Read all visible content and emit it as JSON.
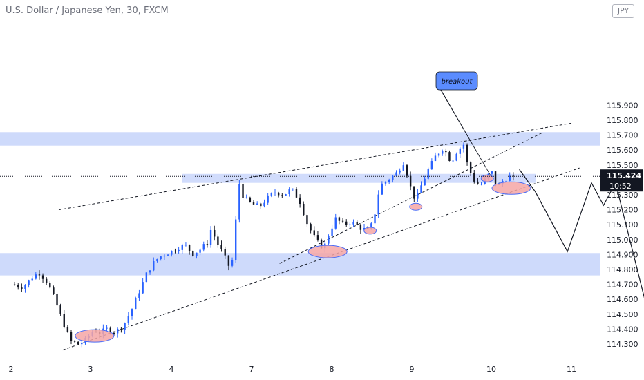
{
  "header": {
    "symbol_title": "U.S. Dollar / Japanese Yen, 30, FXCM",
    "currency": "JPY"
  },
  "chart_data": {
    "type": "candlestick",
    "y_ticks": [
      "115.900",
      "115.800",
      "115.700",
      "115.600",
      "115.500",
      "115.400",
      "115.300",
      "115.200",
      "115.100",
      "115.000",
      "114.900",
      "114.800",
      "114.700",
      "114.600",
      "114.500",
      "114.400",
      "114.300"
    ],
    "x_ticks": [
      "2",
      "3",
      "4",
      "7",
      "8",
      "9",
      "10",
      "11"
    ],
    "ylim": [
      114.25,
      115.93
    ],
    "current_price": "115.424",
    "countdown": "10:52",
    "annotation": "breakout",
    "colors": {
      "up": "#2962ff",
      "down": "#131722",
      "zone": "#c9d6fb",
      "circle_fill": "#f4a6a6",
      "circle_stroke": "#4a6cf7",
      "price_label_bg": "#131722",
      "callout_bg": "#5b8cff"
    },
    "zones": [
      {
        "low": 115.63,
        "high": 115.72
      },
      {
        "low": 115.38,
        "high": 115.44
      },
      {
        "low": 114.76,
        "high": 114.91
      }
    ],
    "close_path": [
      [
        0.0,
        114.7
      ],
      [
        0.15,
        114.68
      ],
      [
        0.25,
        114.74
      ],
      [
        0.35,
        114.78
      ],
      [
        0.45,
        114.72
      ],
      [
        0.55,
        114.6
      ],
      [
        0.65,
        114.45
      ],
      [
        0.75,
        114.32
      ],
      [
        0.85,
        114.3
      ],
      [
        0.95,
        114.33
      ],
      [
        1.0,
        114.37
      ],
      [
        1.05,
        114.4
      ],
      [
        1.1,
        114.37
      ],
      [
        1.2,
        114.4
      ],
      [
        1.3,
        114.38
      ],
      [
        1.4,
        114.42
      ],
      [
        1.5,
        114.52
      ],
      [
        1.6,
        114.65
      ],
      [
        1.7,
        114.78
      ],
      [
        1.8,
        114.86
      ],
      [
        1.9,
        114.9
      ],
      [
        2.0,
        114.92
      ],
      [
        2.1,
        114.95
      ],
      [
        2.2,
        114.96
      ],
      [
        2.25,
        114.9
      ],
      [
        2.35,
        114.93
      ],
      [
        2.45,
        114.98
      ],
      [
        2.5,
        115.08
      ],
      [
        2.55,
        115.0
      ],
      [
        2.65,
        114.9
      ],
      [
        2.72,
        114.82
      ],
      [
        2.78,
        114.88
      ],
      [
        2.82,
        115.3
      ],
      [
        2.85,
        115.38
      ],
      [
        2.9,
        115.28
      ],
      [
        3.0,
        115.24
      ],
      [
        3.1,
        115.22
      ],
      [
        3.2,
        115.28
      ],
      [
        3.3,
        115.32
      ],
      [
        3.4,
        115.3
      ],
      [
        3.5,
        115.34
      ],
      [
        3.6,
        115.26
      ],
      [
        3.7,
        115.1
      ],
      [
        3.8,
        115.0
      ],
      [
        3.9,
        114.94
      ],
      [
        3.95,
        115.02
      ],
      [
        4.05,
        115.14
      ],
      [
        4.15,
        115.1
      ],
      [
        4.25,
        115.12
      ],
      [
        4.35,
        115.08
      ],
      [
        4.45,
        115.06
      ],
      [
        4.5,
        115.1
      ],
      [
        4.55,
        115.2
      ],
      [
        4.6,
        115.36
      ],
      [
        4.7,
        115.4
      ],
      [
        4.8,
        115.44
      ],
      [
        4.9,
        115.52
      ],
      [
        5.0,
        115.32
      ],
      [
        5.05,
        115.26
      ],
      [
        5.1,
        115.34
      ],
      [
        5.2,
        115.46
      ],
      [
        5.3,
        115.56
      ],
      [
        5.4,
        115.62
      ],
      [
        5.45,
        115.56
      ],
      [
        5.5,
        115.52
      ],
      [
        5.55,
        115.58
      ],
      [
        5.65,
        115.64
      ],
      [
        5.7,
        115.5
      ],
      [
        5.78,
        115.4
      ],
      [
        5.85,
        115.36
      ],
      [
        5.92,
        115.4
      ],
      [
        6.0,
        115.46
      ],
      [
        6.05,
        115.38
      ],
      [
        6.1,
        115.36
      ],
      [
        6.15,
        115.4
      ],
      [
        6.22,
        115.42
      ],
      [
        6.28,
        115.424
      ]
    ],
    "circles": [
      {
        "x": 1.05,
        "y": 114.355
      },
      {
        "x": 3.95,
        "y": 114.92
      },
      {
        "x": 4.48,
        "y": 115.06
      },
      {
        "x": 5.05,
        "y": 115.22
      },
      {
        "x": 5.95,
        "y": 115.41
      },
      {
        "x": 6.25,
        "y": 115.345
      }
    ],
    "trendlines": [
      {
        "from": [
          0.6,
          115.2
        ],
        "to": [
          7.0,
          115.78
        ]
      },
      {
        "from": [
          0.65,
          114.26
        ],
        "to": [
          7.1,
          115.48
        ]
      },
      {
        "from": [
          3.35,
          114.84
        ],
        "to": [
          6.65,
          115.72
        ]
      }
    ],
    "projection": [
      [
        6.35,
        115.47
      ],
      [
        6.55,
        115.32
      ],
      [
        6.95,
        114.92
      ],
      [
        7.25,
        115.38
      ],
      [
        7.4,
        115.23
      ],
      [
        7.55,
        115.38
      ],
      [
        8.05,
        114.31
      ]
    ]
  }
}
